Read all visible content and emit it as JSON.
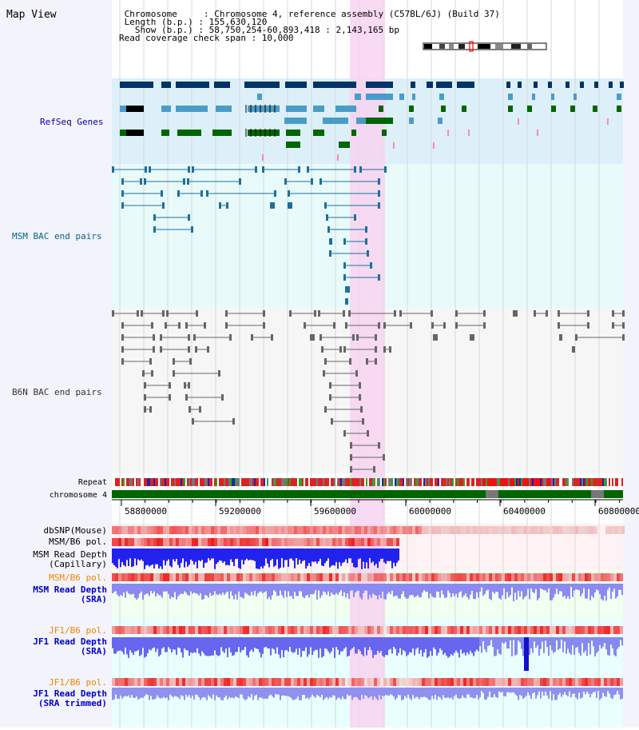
{
  "header": {
    "title": "Map View",
    "lines": [
      " Chromosome     : Chromosome 4, reference assembly (C57BL/6J) (Build 37)",
      " Length (b.p.) : 155,630,120",
      "   Show (b.p.) : 58,750,254-60,893,418 : 2,143,165 bp",
      "Read coverage check span : 10,000"
    ]
  },
  "tracks": {
    "refseq": {
      "label": "RefSeq Genes",
      "color": "#0000aa"
    },
    "msm_bac": {
      "label": "MSM BAC end pairs",
      "color": "#006688"
    },
    "b6n_bac": {
      "label": "B6N BAC end pairs",
      "color": "#333333"
    },
    "repeat": {
      "label": "Repeat"
    },
    "chromosome": {
      "label": "chromosome 4"
    },
    "dbsnp": {
      "label": "dbSNP(Mouse)"
    },
    "msm_b6_pol_1": {
      "label": "MSM/B6 pol."
    },
    "msm_read_depth_cap": {
      "label_1": "MSM Read Depth",
      "label_2": "(Capillary)"
    },
    "msm_b6_pol_2": {
      "label": "MSM/B6 pol.",
      "color": "#ee8800"
    },
    "msm_read_depth_sra": {
      "label_1": "MSM Read Depth",
      "label_2": "(SRA)",
      "color": "#0000cc"
    },
    "jf1_b6_pol": {
      "label": "JF1/B6 pol.",
      "color": "#ee8800"
    },
    "jf1_read_depth_sra": {
      "label_1": "JF1 Read Depth",
      "label_2": "(SRA)",
      "color": "#0000cc"
    },
    "jf1_b6_pol_2": {
      "label": "JF1/B6 pol.",
      "color": "#ee8800"
    },
    "jf1_read_depth_trim": {
      "label_1": "JF1 Read Depth",
      "label_2": "(SRA trimmed)",
      "color": "#0000cc"
    }
  },
  "axis": {
    "ticks": [
      "58800000",
      "59200000",
      "59600000",
      "60000000",
      "60400000",
      "60800000"
    ]
  },
  "colors": {
    "refseq_bg": "#ddf0fa",
    "bac_bg": "#e8fafa",
    "highlight": "#f7d4f0",
    "gene_dark": "#003366",
    "gene_mid": "#4a9cc8",
    "gene_green": "#006600",
    "chromosome_green": "#006600",
    "snp_red": "#ee2222",
    "depth_blue": "#2222ee",
    "depth_light": "#8888ee"
  }
}
